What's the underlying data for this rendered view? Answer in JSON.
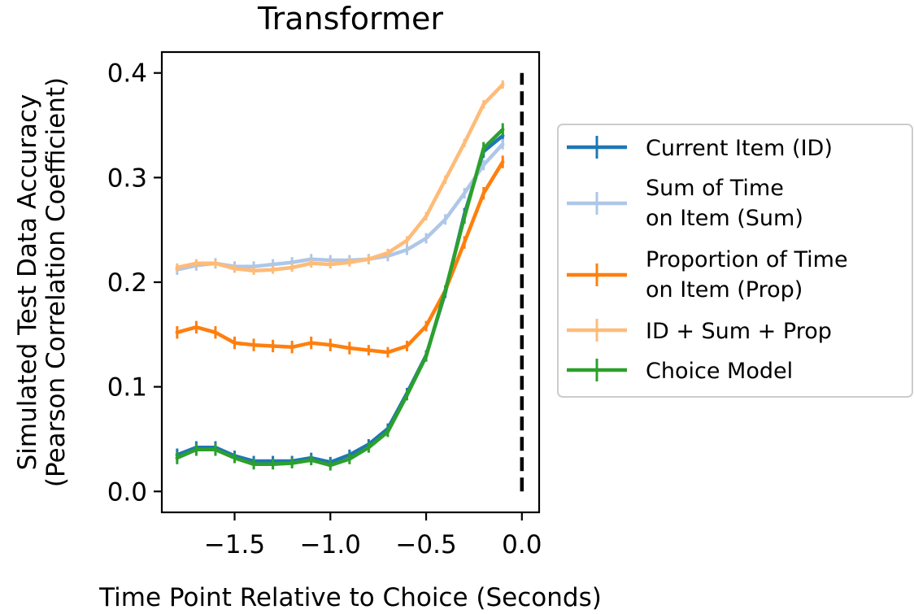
{
  "chart_data": {
    "type": "line",
    "title": "Transformer",
    "xlabel": "Time Point Relative to Choice (Seconds)",
    "ylabel_lines": [
      "Simulated Test Data Accuracy",
      "(Pearson Correlation Coefficient)"
    ],
    "xlim": [
      -1.88,
      0.09
    ],
    "ylim": [
      -0.02,
      0.42
    ],
    "x_ticks": [
      -1.5,
      -1.0,
      -0.5,
      0.0
    ],
    "x_tick_labels": [
      "−1.5",
      "−1.0",
      "−0.5",
      "0.0"
    ],
    "y_ticks": [
      0.0,
      0.1,
      0.2,
      0.3,
      0.4
    ],
    "y_tick_labels": [
      "0.0",
      "0.1",
      "0.2",
      "0.3",
      "0.4"
    ],
    "grid": false,
    "legend_position": "outside-right",
    "x": [
      -1.8,
      -1.7,
      -1.6,
      -1.5,
      -1.4,
      -1.3,
      -1.2,
      -1.1,
      -1.0,
      -0.9,
      -0.8,
      -0.7,
      -0.6,
      -0.5,
      -0.4,
      -0.3,
      -0.2,
      -0.1
    ],
    "series": [
      {
        "name": "Current Item (ID)",
        "color": "#1f77b4",
        "values": [
          0.035,
          0.042,
          0.042,
          0.034,
          0.029,
          0.029,
          0.029,
          0.032,
          0.028,
          0.035,
          0.045,
          0.06,
          0.094,
          0.13,
          0.19,
          0.265,
          0.325,
          0.34
        ],
        "errors": [
          0.006,
          0.006,
          0.006,
          0.005,
          0.005,
          0.005,
          0.005,
          0.005,
          0.005,
          0.005,
          0.005,
          0.005,
          0.005,
          0.005,
          0.005,
          0.006,
          0.006,
          0.006
        ]
      },
      {
        "name": "Sum of Time\non Item (Sum)",
        "label_lines": [
          "Sum of Time",
          "on Item (Sum)"
        ],
        "color": "#aec7e8",
        "values": [
          0.212,
          0.216,
          0.218,
          0.215,
          0.215,
          0.217,
          0.219,
          0.222,
          0.221,
          0.221,
          0.222,
          0.225,
          0.231,
          0.242,
          0.26,
          0.285,
          0.312,
          0.332
        ],
        "errors": [
          0.005,
          0.005,
          0.005,
          0.005,
          0.005,
          0.005,
          0.005,
          0.005,
          0.005,
          0.005,
          0.005,
          0.005,
          0.005,
          0.005,
          0.005,
          0.005,
          0.005,
          0.005
        ]
      },
      {
        "name": "Proportion of Time\non Item (Prop)",
        "label_lines": [
          "Proportion of Time",
          "on Item (Prop)"
        ],
        "color": "#ff7f0e",
        "values": [
          0.152,
          0.157,
          0.152,
          0.142,
          0.14,
          0.139,
          0.138,
          0.142,
          0.14,
          0.137,
          0.135,
          0.133,
          0.139,
          0.158,
          0.192,
          0.238,
          0.285,
          0.315
        ],
        "errors": [
          0.006,
          0.006,
          0.006,
          0.006,
          0.006,
          0.006,
          0.006,
          0.006,
          0.006,
          0.006,
          0.005,
          0.005,
          0.005,
          0.005,
          0.005,
          0.006,
          0.006,
          0.006
        ]
      },
      {
        "name": "ID + Sum + Prop",
        "color": "#ffbb78",
        "values": [
          0.214,
          0.218,
          0.218,
          0.213,
          0.211,
          0.212,
          0.214,
          0.218,
          0.217,
          0.219,
          0.222,
          0.228,
          0.24,
          0.263,
          0.298,
          0.333,
          0.37,
          0.389
        ],
        "errors": [
          0.004,
          0.004,
          0.004,
          0.004,
          0.004,
          0.004,
          0.004,
          0.004,
          0.004,
          0.004,
          0.004,
          0.004,
          0.004,
          0.004,
          0.004,
          0.004,
          0.004,
          0.004
        ]
      },
      {
        "name": "Choice Model",
        "color": "#2ca02c",
        "values": [
          0.032,
          0.04,
          0.04,
          0.032,
          0.026,
          0.026,
          0.027,
          0.03,
          0.025,
          0.031,
          0.042,
          0.057,
          0.092,
          0.129,
          0.192,
          0.262,
          0.328,
          0.346
        ],
        "errors": [
          0.006,
          0.006,
          0.006,
          0.005,
          0.005,
          0.005,
          0.005,
          0.005,
          0.005,
          0.005,
          0.005,
          0.005,
          0.005,
          0.005,
          0.005,
          0.006,
          0.006,
          0.006
        ]
      }
    ],
    "annotations": [
      {
        "type": "vertical-line",
        "x": 0.0,
        "y_range": [
          0.0,
          0.4
        ],
        "style": "dashed",
        "color": "#000000"
      }
    ]
  }
}
